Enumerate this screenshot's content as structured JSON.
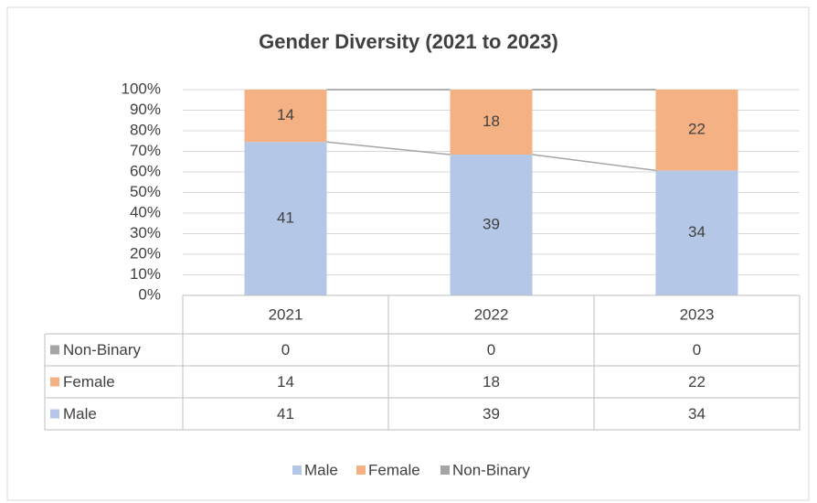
{
  "chart_data": {
    "type": "percent_stacked_bar",
    "title": "Gender Diversity (2021 to 2023)",
    "categories": [
      "2021",
      "2022",
      "2023"
    ],
    "series": [
      {
        "name": "Male",
        "color": "#b4c7e7",
        "values": [
          41,
          39,
          34
        ],
        "data_labels": true
      },
      {
        "name": "Female",
        "color": "#f4b183",
        "values": [
          14,
          18,
          22
        ],
        "data_labels": true
      },
      {
        "name": "Non-Binary",
        "color": "#a5a5a5",
        "values": [
          0,
          0,
          0
        ],
        "data_labels": false
      }
    ],
    "ylim": [
      0,
      100
    ],
    "yticks": [
      {
        "value": 0,
        "label": "0%"
      },
      {
        "value": 10,
        "label": "10%"
      },
      {
        "value": 20,
        "label": "20%"
      },
      {
        "value": 30,
        "label": "30%"
      },
      {
        "value": 40,
        "label": "40%"
      },
      {
        "value": 50,
        "label": "50%"
      },
      {
        "value": 60,
        "label": "60%"
      },
      {
        "value": 70,
        "label": "70%"
      },
      {
        "value": 80,
        "label": "80%"
      },
      {
        "value": 90,
        "label": "90%"
      },
      {
        "value": 100,
        "label": "100%"
      }
    ],
    "grid": true,
    "series_lines": true,
    "data_table": true,
    "legend": "bottom"
  }
}
